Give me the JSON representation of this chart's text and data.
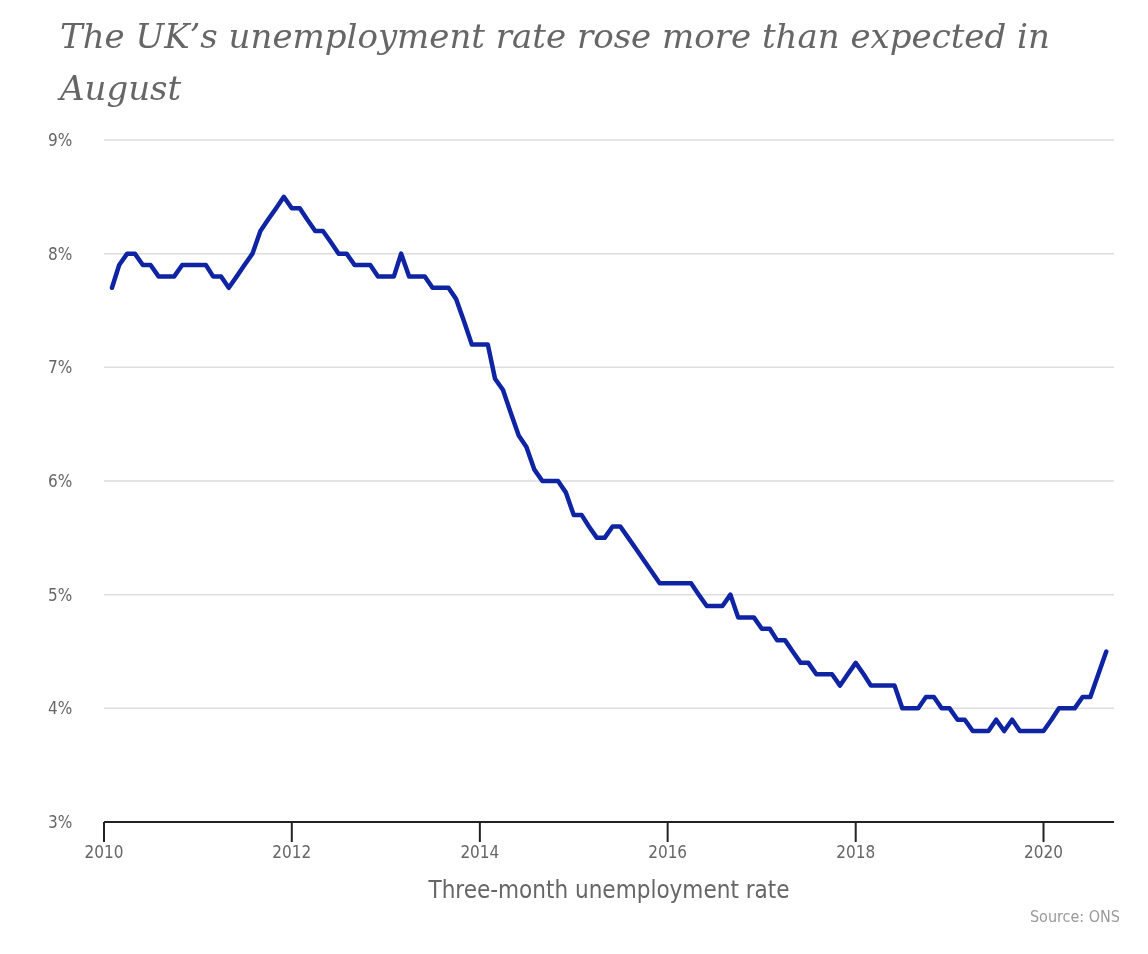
{
  "chart_data": {
    "type": "line",
    "title": "The UK’s unemployment rate rose more than expected in August",
    "xlabel": "Three-month unemployment rate",
    "annotations": [
      "Source: ONS"
    ],
    "x": [
      "2010-02",
      "2010-03",
      "2010-04",
      "2010-05",
      "2010-06",
      "2010-07",
      "2010-08",
      "2010-09",
      "2010-10",
      "2010-11",
      "2010-12",
      "2011-01",
      "2011-02",
      "2011-03",
      "2011-04",
      "2011-05",
      "2011-06",
      "2011-07",
      "2011-08",
      "2011-09",
      "2011-10",
      "2011-11",
      "2011-12",
      "2012-01",
      "2012-02",
      "2012-03",
      "2012-04",
      "2012-05",
      "2012-06",
      "2012-07",
      "2012-08",
      "2012-09",
      "2012-10",
      "2012-11",
      "2012-12",
      "2013-01",
      "2013-02",
      "2013-03",
      "2013-04",
      "2013-05",
      "2013-06",
      "2013-07",
      "2013-08",
      "2013-09",
      "2013-10",
      "2013-11",
      "2013-12",
      "2014-01",
      "2014-02",
      "2014-03",
      "2014-04",
      "2014-05",
      "2014-06",
      "2014-07",
      "2014-08",
      "2014-09",
      "2014-10",
      "2014-11",
      "2014-12",
      "2015-01",
      "2015-02",
      "2015-03",
      "2015-04",
      "2015-05",
      "2015-06",
      "2015-07",
      "2015-08",
      "2015-09",
      "2015-10",
      "2015-11",
      "2015-12",
      "2016-01",
      "2016-02",
      "2016-03",
      "2016-04",
      "2016-05",
      "2016-06",
      "2016-07",
      "2016-08",
      "2016-09",
      "2016-10",
      "2016-11",
      "2016-12",
      "2017-01",
      "2017-02",
      "2017-03",
      "2017-04",
      "2017-05",
      "2017-06",
      "2017-07",
      "2017-08",
      "2017-09",
      "2017-10",
      "2017-11",
      "2017-12",
      "2018-01",
      "2018-02",
      "2018-03",
      "2018-04",
      "2018-05",
      "2018-06",
      "2018-07",
      "2018-08",
      "2018-09",
      "2018-10",
      "2018-11",
      "2018-12",
      "2019-01",
      "2019-02",
      "2019-03",
      "2019-04",
      "2019-05",
      "2019-06",
      "2019-07",
      "2019-08",
      "2019-09",
      "2019-10",
      "2019-11",
      "2019-12",
      "2020-01",
      "2020-02",
      "2020-03",
      "2020-04",
      "2020-05",
      "2020-06",
      "2020-07",
      "2020-08",
      "2020-09"
    ],
    "series": [
      {
        "color": "#0f24a3",
        "values": [
          7.7,
          7.9,
          8.0,
          8.0,
          7.9,
          7.9,
          7.8,
          7.8,
          7.8,
          7.9,
          7.9,
          7.9,
          7.9,
          7.8,
          7.8,
          7.7,
          7.8,
          7.9,
          8.0,
          8.2,
          8.3,
          8.4,
          8.5,
          8.4,
          8.4,
          8.3,
          8.2,
          8.2,
          8.1,
          8.0,
          8.0,
          7.9,
          7.9,
          7.9,
          7.8,
          7.8,
          7.8,
          8.0,
          7.8,
          7.8,
          7.8,
          7.7,
          7.7,
          7.7,
          7.6,
          7.4,
          7.2,
          7.2,
          7.2,
          6.9,
          6.8,
          6.6,
          6.4,
          6.3,
          6.1,
          6.0,
          6.0,
          6.0,
          5.9,
          5.7,
          5.7,
          5.6,
          5.5,
          5.5,
          5.6,
          5.6,
          5.5,
          5.4,
          5.3,
          5.2,
          5.1,
          5.1,
          5.1,
          5.1,
          5.1,
          5.0,
          4.9,
          4.9,
          4.9,
          5.0,
          4.8,
          4.8,
          4.8,
          4.7,
          4.7,
          4.6,
          4.6,
          4.5,
          4.4,
          4.4,
          4.3,
          4.3,
          4.3,
          4.2,
          4.3,
          4.4,
          4.3,
          4.2,
          4.2,
          4.2,
          4.2,
          4.0,
          4.0,
          4.0,
          4.1,
          4.1,
          4.0,
          4.0,
          3.9,
          3.9,
          3.8,
          3.8,
          3.8,
          3.9,
          3.8,
          3.9,
          3.8,
          3.8,
          3.8,
          3.8,
          3.9,
          4.0,
          4.0,
          4.0,
          4.1,
          4.1,
          4.3,
          4.5
        ]
      }
    ],
    "xlim": [
      "2010-01",
      "2020-10"
    ],
    "xticks": [
      "2010",
      "2012",
      "2014",
      "2016",
      "2018",
      "2020"
    ],
    "ylim": [
      3,
      9
    ],
    "yticks": [
      {
        "value": 3,
        "label": "3%"
      },
      {
        "value": 4,
        "label": "4%"
      },
      {
        "value": 5,
        "label": "5%"
      },
      {
        "value": 6,
        "label": "6%"
      },
      {
        "value": 7,
        "label": "7%"
      },
      {
        "value": 8,
        "label": "8%"
      },
      {
        "value": 9,
        "label": "9%"
      }
    ],
    "grid": "y",
    "line_style": "solid",
    "marker": "none"
  }
}
